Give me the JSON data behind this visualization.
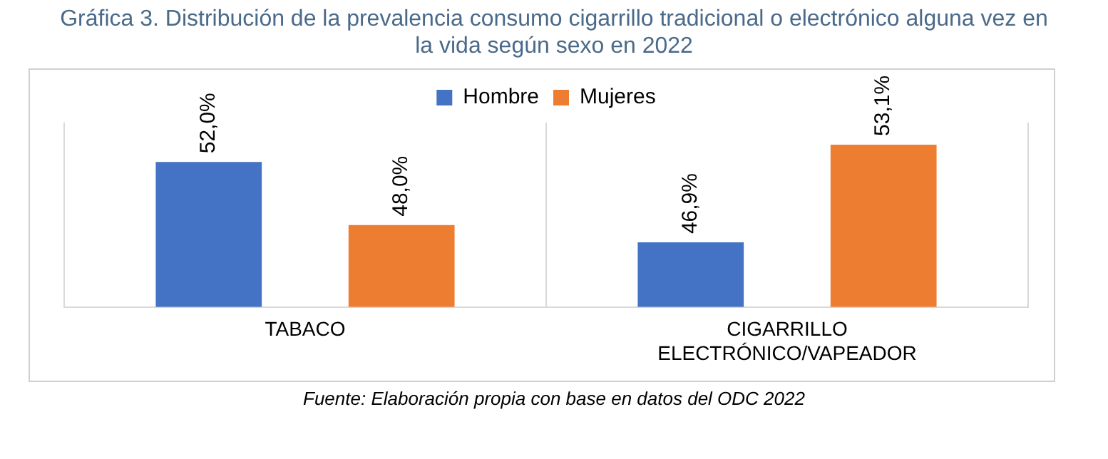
{
  "chart_data": {
    "type": "bar",
    "title": "Gráfica 3. Distribución de la prevalencia consumo cigarrillo tradicional o electrónico alguna vez en la vida según sexo en 2022",
    "categories": [
      "TABACO",
      "CIGARRILLO ELECTRÓNICO/VAPEADOR"
    ],
    "series": [
      {
        "name": "Hombre",
        "color": "#4472c4",
        "values": [
          52.0,
          46.9
        ],
        "value_labels": [
          "52,0%",
          "46,9%"
        ]
      },
      {
        "name": "Mujeres",
        "color": "#ed7d31",
        "values": [
          48.0,
          53.1
        ],
        "value_labels": [
          "48,0%",
          "53,1%"
        ]
      }
    ],
    "ylim": [
      42.8,
      54.5
    ],
    "tick_labels": "x",
    "grid": "x",
    "legend": "top",
    "annotations": [
      "Fuente: Elaboración propia con base en datos del ODC 2022"
    ]
  }
}
